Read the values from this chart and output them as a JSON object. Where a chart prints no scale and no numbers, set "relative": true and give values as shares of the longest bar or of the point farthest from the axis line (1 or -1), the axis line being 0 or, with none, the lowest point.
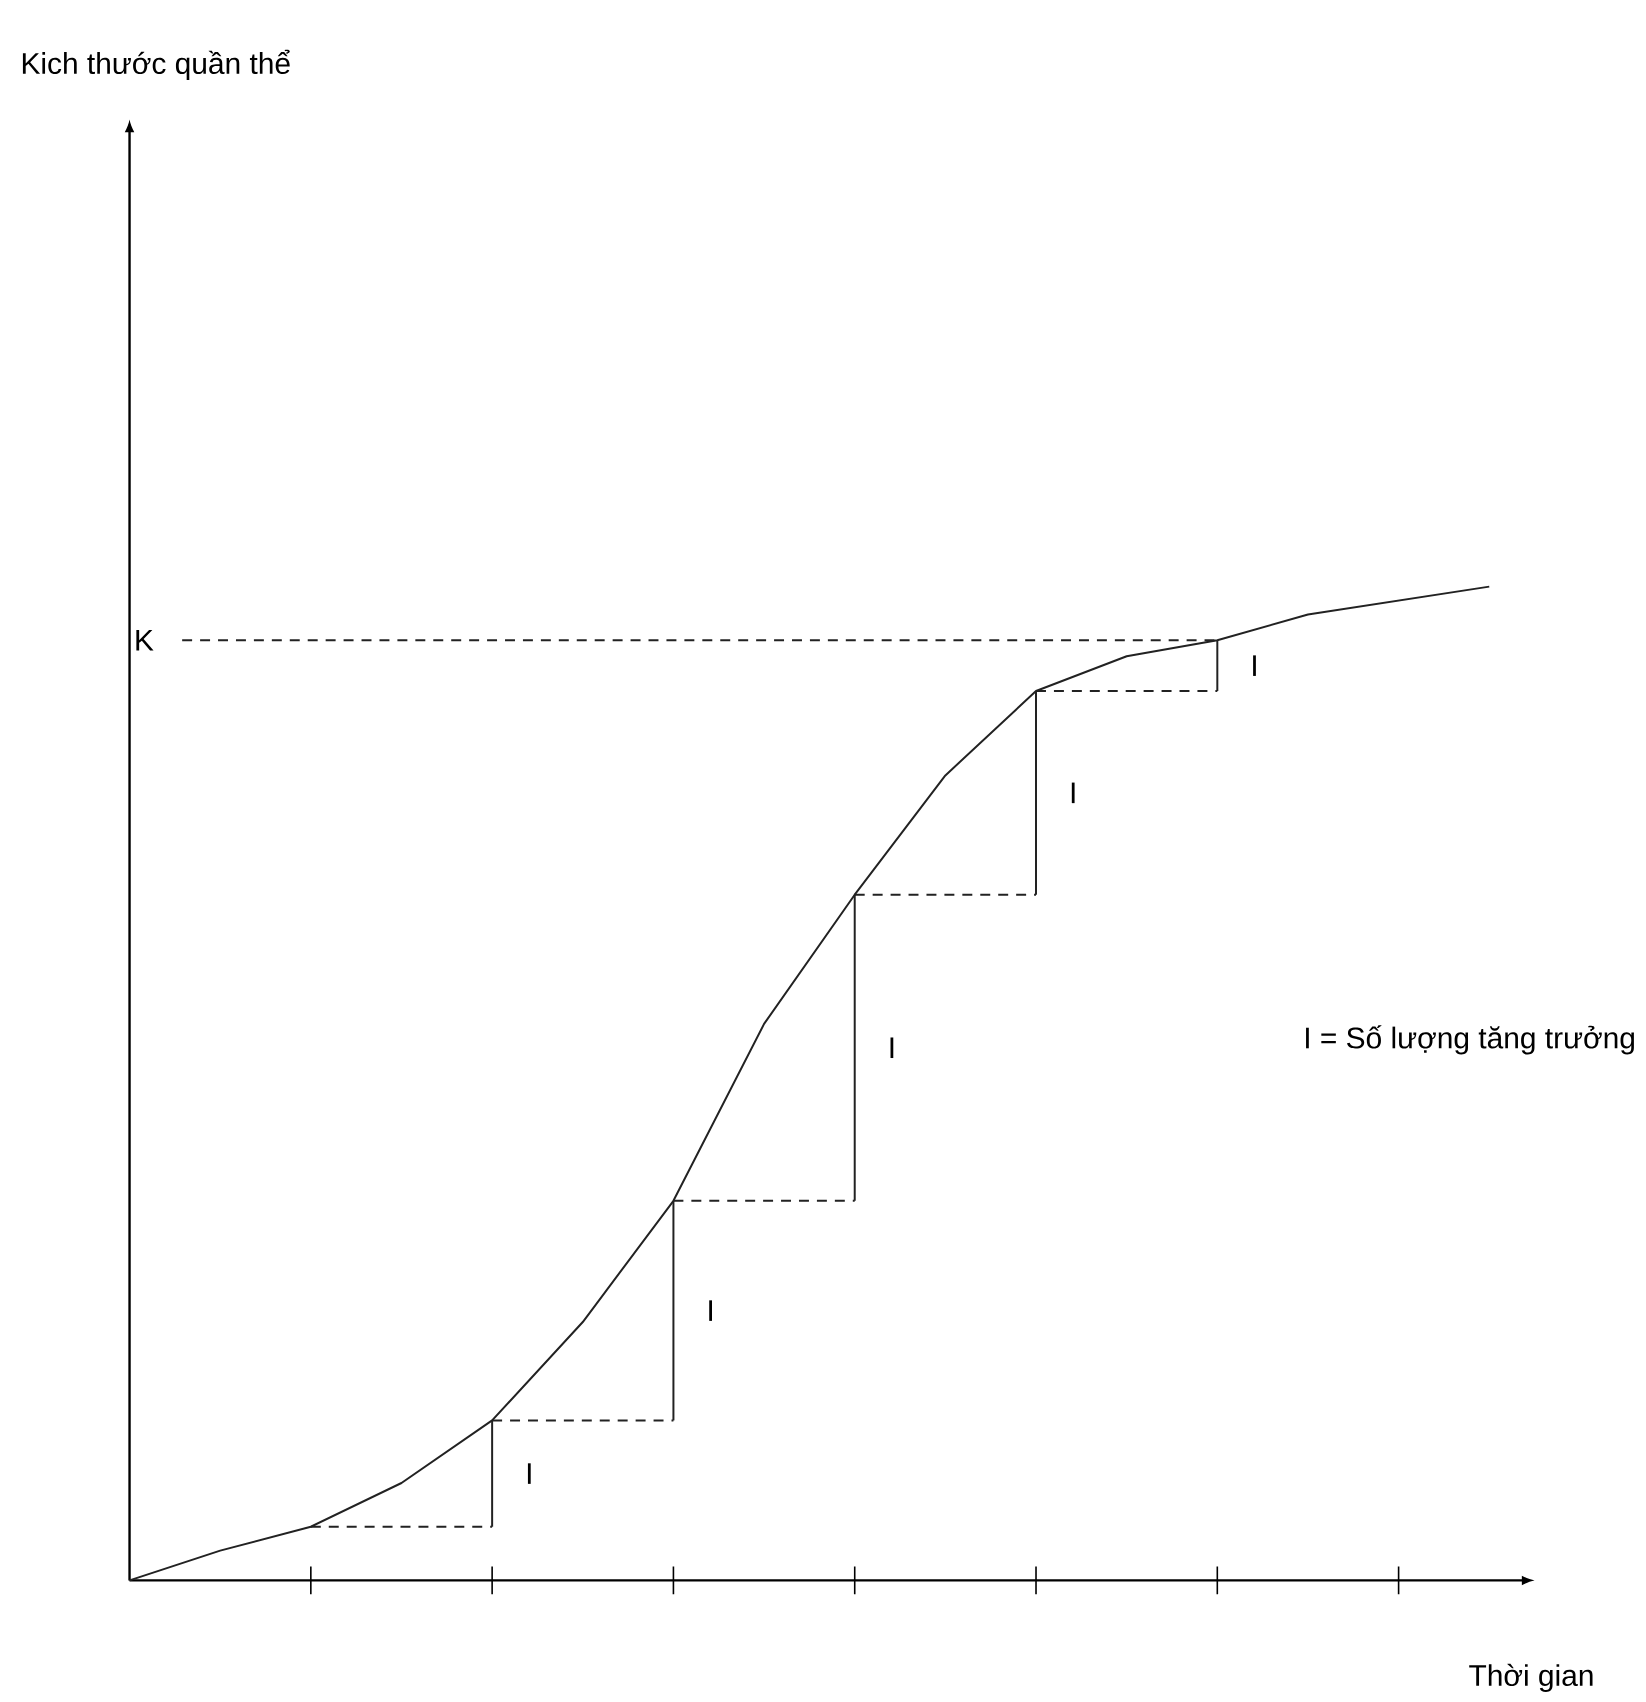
{
  "chart_data": {
    "type": "line",
    "relative": true,
    "xlabel": "Thời gian",
    "categories": [
      null,
      null,
      null,
      null,
      null,
      null,
      null,
      null,
      null,
      null,
      null,
      null,
      null,
      null,
      null,
      null
    ],
    "marker": "none",
    "line_style": "solid",
    "series": [
      {
        "color": "#222222",
        "values": [
          0,
          0.03,
          0.054,
          0.098,
          0.161,
          0.26,
          0.382,
          0.56,
          0.69,
          0.81,
          0.895,
          0.93,
          0.946,
          0.972,
          0.986,
          1
        ]
      }
    ],
    "ref_lines": [
      {
        "axis": "y",
        "value": 0.946,
        "label": "K",
        "color": "#222222",
        "line_style": "dashed"
      }
    ],
    "annotations": [
      "I",
      "I",
      "I",
      "I",
      "I",
      "I = Số lượng tăng trưởng",
      "Kich thước quần thể"
    ]
  }
}
